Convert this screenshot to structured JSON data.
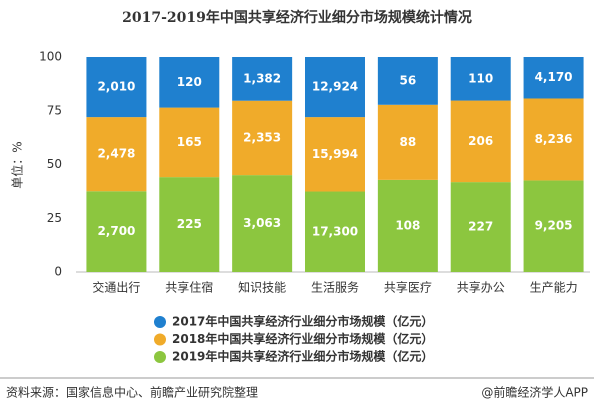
{
  "chart_data": {
    "type": "stacked_percent",
    "title": "2017-2019年中国共享经济行业细分市场规模统计情况",
    "y_label": "单位：%",
    "categories": [
      "交通出行",
      "共享住宿",
      "知识技能",
      "生活服务",
      "共享医疗",
      "共享办公",
      "生产能力"
    ],
    "series": [
      {
        "name": "2019年中国共享经济行业细分市场规模（亿元）",
        "color": "#8cc63f",
        "values": [
          2700,
          225,
          3063,
          17300,
          108,
          227,
          9205
        ],
        "value_labels": [
          "2,700",
          "225",
          "3,063",
          "17,300",
          "108",
          "227",
          "9,205"
        ]
      },
      {
        "name": "2018年中国共享经济行业细分市场规模（亿元）",
        "color": "#f0ab2a",
        "values": [
          2478,
          165,
          2353,
          15994,
          88,
          206,
          8236
        ],
        "value_labels": [
          "2,478",
          "165",
          "2,353",
          "15,994",
          "88",
          "206",
          "8,236"
        ]
      },
      {
        "name": "2017年中国共享经济行业细分市场规模（亿元）",
        "color": "#1f80cf",
        "values": [
          2010,
          120,
          1382,
          12924,
          56,
          110,
          4170
        ],
        "value_labels": [
          "2,010",
          "120",
          "1,382",
          "12,924",
          "56",
          "110",
          "4,170"
        ]
      }
    ],
    "ylim": [
      0,
      100
    ],
    "yticks": [
      0,
      25,
      50,
      75,
      100
    ],
    "grid": false,
    "source": "资料来源：国家信息中心、前瞻产业研究院整理",
    "credit": "@前瞻经济学人APP"
  }
}
